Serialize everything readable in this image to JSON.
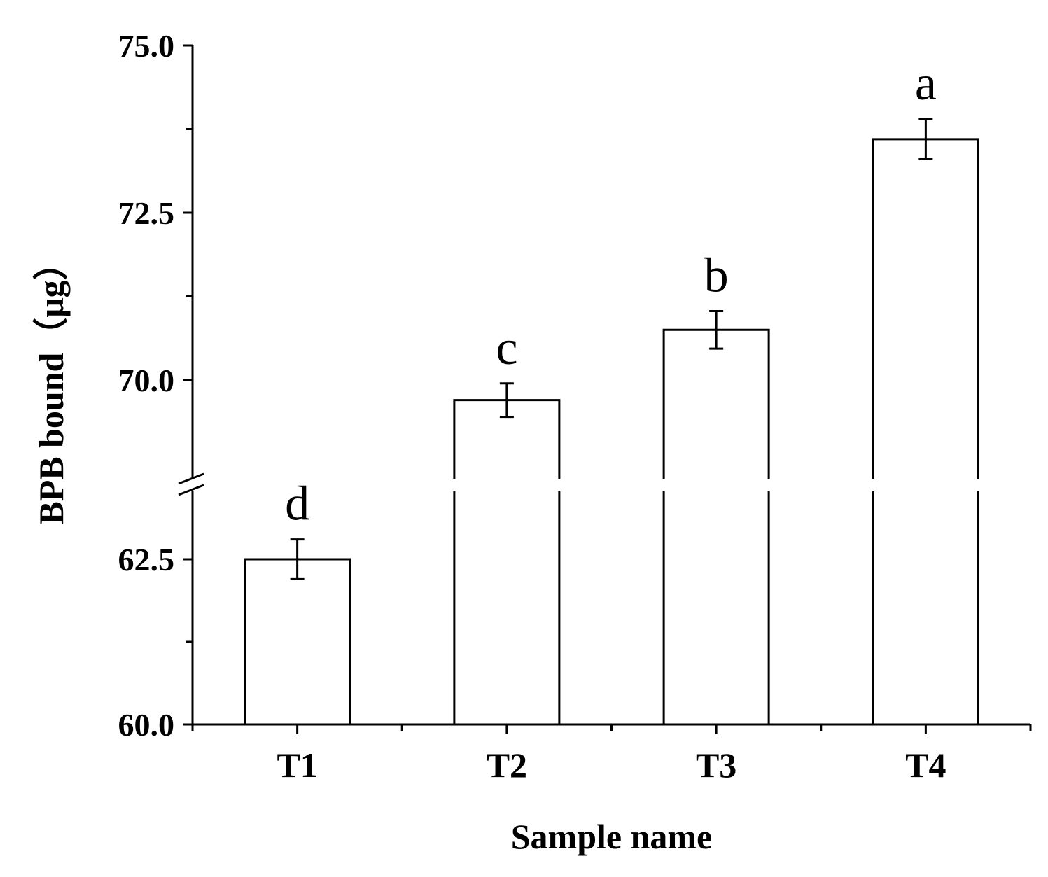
{
  "chart_data": {
    "type": "bar",
    "title": "",
    "xlabel": "Sample name",
    "ylabel": "BPB bound（μg）",
    "categories": [
      "T1",
      "T2",
      "T3",
      "T4"
    ],
    "values": [
      62.5,
      69.7,
      70.75,
      73.6
    ],
    "errors": [
      0.3,
      0.25,
      0.28,
      0.3
    ],
    "significance_letters": [
      "d",
      "c",
      "b",
      "a"
    ],
    "y_axis": {
      "broken": true,
      "lower_segment": {
        "range": [
          60.0,
          63.5
        ],
        "ticks": [
          60.0,
          62.5
        ],
        "tick_labels": [
          "60.0",
          "62.5"
        ]
      },
      "upper_segment": {
        "range": [
          68.5,
          75.0
        ],
        "ticks": [
          70.0,
          72.5,
          75.0
        ],
        "tick_labels": [
          "70.0",
          "72.5",
          "75.0"
        ]
      }
    },
    "bar_fill": "#ffffff",
    "bar_stroke": "#000000",
    "grid": false,
    "legend": "none"
  }
}
